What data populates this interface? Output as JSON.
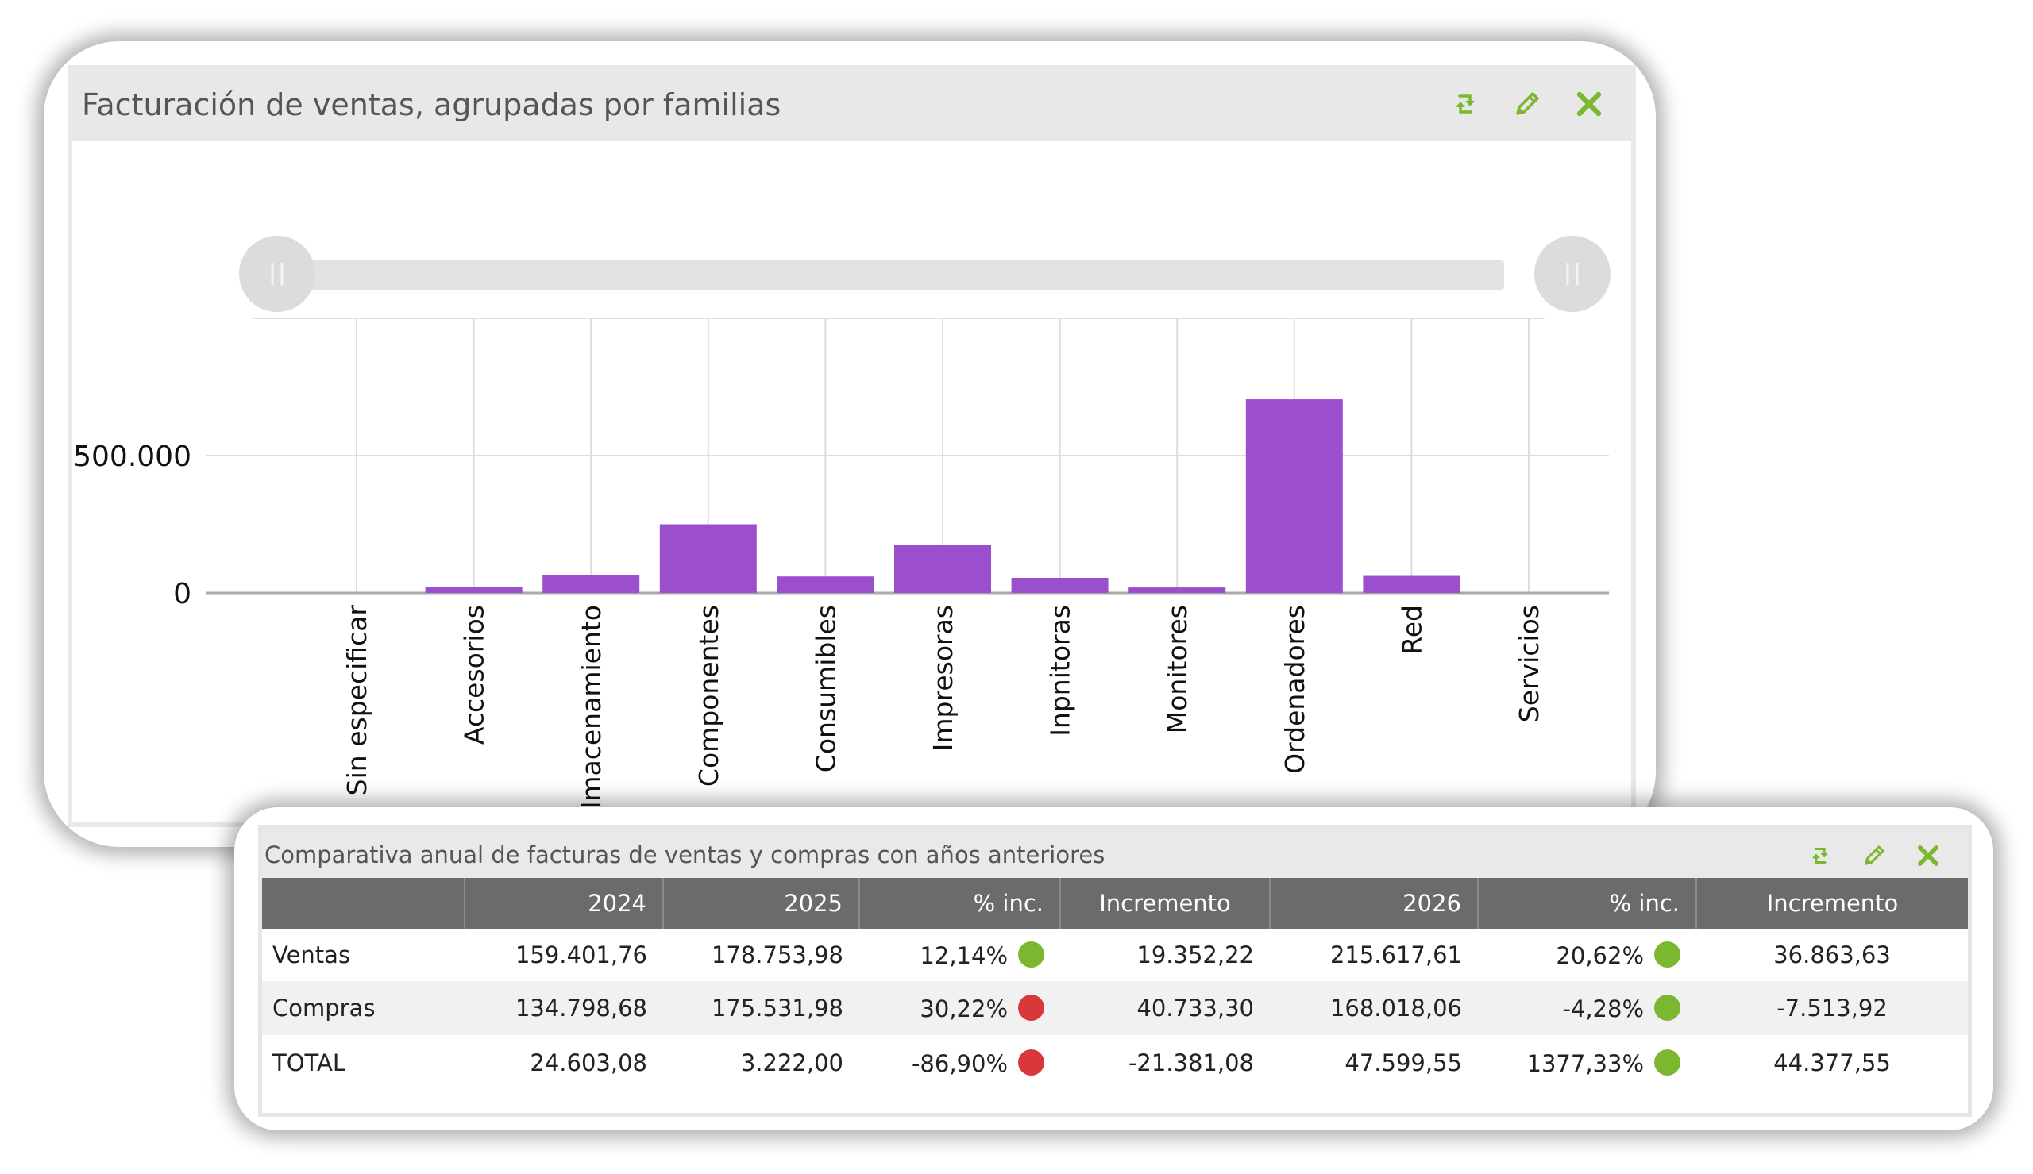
{
  "widget_sales": {
    "title": "Facturación de ventas, agrupadas por familias",
    "icons": [
      "refresh-icon",
      "edit-icon",
      "close-icon"
    ],
    "accent_color": "#7cb82f",
    "bar_color": "#9c4fcc"
  },
  "chart_data": {
    "type": "bar",
    "title": "",
    "xlabel": "",
    "ylabel": "",
    "categories": [
      "Sin especificar",
      "Accesorios",
      "Almacenamiento",
      "Componentes",
      "Consumibles",
      "Impresoras",
      "Inpnitoras",
      "Monitores",
      "Ordenadores",
      "Red",
      "Servicios"
    ],
    "values": [
      0,
      22000,
      65000,
      250000,
      60000,
      175000,
      55000,
      20000,
      705000,
      62000,
      0
    ],
    "yticks": [
      0,
      500000
    ],
    "ytick_labels": [
      "0",
      "500.000"
    ],
    "ylim": [
      0,
      1000000
    ],
    "grid": true,
    "range_slider": true
  },
  "widget_compare": {
    "title": "Comparativa anual de facturas de ventas y compras con años anteriores",
    "icons": [
      "refresh-icon",
      "edit-icon",
      "close-icon"
    ],
    "columns": [
      "",
      "2024",
      "2025",
      "% inc.",
      "Incremento",
      "2026",
      "% inc.",
      "Incremento"
    ],
    "rows": [
      {
        "label": "Ventas",
        "y2024": "159.401,76",
        "y2025": "178.753,98",
        "pct1": "12,14%",
        "status1": "green",
        "inc1": "19.352,22",
        "y2026": "215.617,61",
        "pct2": "20,62%",
        "status2": "green",
        "inc2": "36.863,63"
      },
      {
        "label": "Compras",
        "y2024": "134.798,68",
        "y2025": "175.531,98",
        "pct1": "30,22%",
        "status1": "red",
        "inc1": "40.733,30",
        "y2026": "168.018,06",
        "pct2": "-4,28%",
        "status2": "green",
        "inc2": "-7.513,92"
      },
      {
        "label": "TOTAL",
        "y2024": "24.603,08",
        "y2025": "3.222,00",
        "pct1": "-86,90%",
        "status1": "red",
        "inc1": "-21.381,08",
        "y2026": "47.599,55",
        "pct2": "1377,33%",
        "status2": "green",
        "inc2": "44.377,55"
      }
    ],
    "status_colors": {
      "green": "#7cb82f",
      "red": "#d9383a"
    }
  }
}
